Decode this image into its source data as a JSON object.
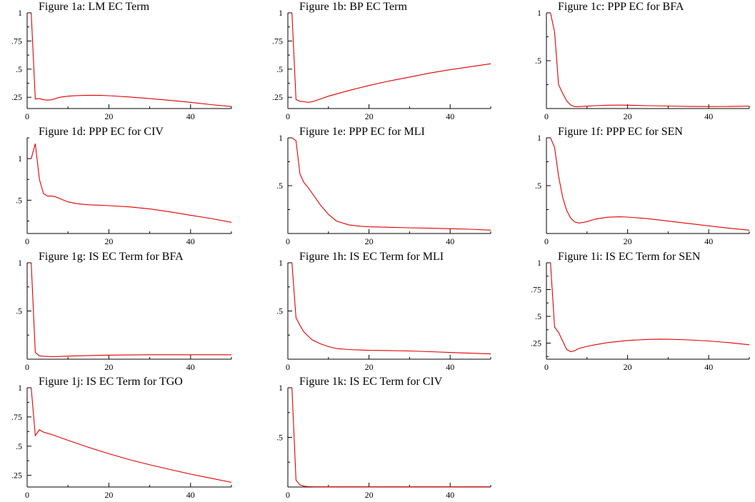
{
  "chart_data": [
    {
      "type": "line",
      "title": "Figure 1a: LM EC Term",
      "xlim": [
        0,
        50
      ],
      "ylim": [
        0.15,
        1.0
      ],
      "x_ticks": [
        0,
        20,
        40
      ],
      "y_ticks": [
        0.25,
        0.5,
        0.75,
        1
      ],
      "y_tick_labels": [
        ".25",
        ".5",
        ".75",
        "1"
      ],
      "series": [
        {
          "x": [
            1,
            2,
            3,
            4,
            5,
            6,
            8,
            10,
            12,
            15,
            18,
            20,
            25,
            30,
            35,
            40,
            45,
            50
          ],
          "values": [
            1.0,
            0.235,
            0.238,
            0.228,
            0.225,
            0.228,
            0.25,
            0.26,
            0.265,
            0.268,
            0.267,
            0.264,
            0.253,
            0.238,
            0.222,
            0.205,
            0.185,
            0.168
          ]
        }
      ]
    },
    {
      "type": "line",
      "title": "Figure 1b: BP EC Term",
      "xlim": [
        0,
        50
      ],
      "ylim": [
        0.15,
        1.0
      ],
      "x_ticks": [
        0,
        20,
        40
      ],
      "y_ticks": [
        0.25,
        0.5,
        0.75,
        1
      ],
      "y_tick_labels": [
        ".25",
        ".5",
        ".75",
        "1"
      ],
      "series": [
        {
          "x": [
            1,
            2,
            3,
            4,
            5,
            6,
            8,
            10,
            15,
            20,
            25,
            30,
            35,
            40,
            45,
            50
          ],
          "values": [
            1.0,
            0.23,
            0.215,
            0.21,
            0.205,
            0.21,
            0.235,
            0.26,
            0.31,
            0.355,
            0.395,
            0.43,
            0.465,
            0.495,
            0.522,
            0.548
          ]
        }
      ]
    },
    {
      "type": "line",
      "title": "Figure 1c: PPP EC for BFA",
      "xlim": [
        0,
        50
      ],
      "ylim": [
        0.0,
        1.0
      ],
      "x_ticks": [
        0,
        20,
        40
      ],
      "y_ticks": [
        0.5,
        1
      ],
      "y_tick_labels": [
        ".5",
        "1"
      ],
      "series": [
        {
          "x": [
            1,
            2,
            3,
            4,
            5,
            6,
            7,
            8,
            10,
            12,
            15,
            18,
            20,
            25,
            30,
            35,
            40,
            45,
            50
          ],
          "values": [
            1.0,
            0.8,
            0.25,
            0.16,
            0.08,
            0.035,
            0.02,
            0.02,
            0.025,
            0.03,
            0.035,
            0.036,
            0.035,
            0.03,
            0.026,
            0.022,
            0.021,
            0.022,
            0.025
          ]
        }
      ]
    },
    {
      "type": "line",
      "title": "Figure 1d: PPP EC for CIV",
      "xlim": [
        0,
        50
      ],
      "ylim": [
        0.1,
        1.25
      ],
      "x_ticks": [
        0,
        20,
        40
      ],
      "y_ticks": [
        0.5,
        1
      ],
      "y_tick_labels": [
        ".5",
        "1"
      ],
      "series": [
        {
          "x": [
            1,
            2,
            3,
            4,
            5,
            6,
            7,
            8,
            10,
            12,
            15,
            18,
            20,
            25,
            30,
            35,
            40,
            45,
            50
          ],
          "values": [
            1.0,
            1.18,
            0.75,
            0.58,
            0.55,
            0.55,
            0.54,
            0.52,
            0.48,
            0.46,
            0.445,
            0.44,
            0.435,
            0.42,
            0.395,
            0.36,
            0.32,
            0.28,
            0.235
          ]
        }
      ]
    },
    {
      "type": "line",
      "title": "Figure 1e: PPP EC for MLI",
      "xlim": [
        0,
        50
      ],
      "ylim": [
        0.0,
        1.0
      ],
      "x_ticks": [
        0,
        20,
        40
      ],
      "y_ticks": [
        0.5,
        1
      ],
      "y_tick_labels": [
        ".5",
        "1"
      ],
      "series": [
        {
          "x": [
            1,
            2,
            3,
            4,
            5,
            6,
            8,
            10,
            12,
            15,
            18,
            20,
            25,
            30,
            35,
            40,
            45,
            50
          ],
          "values": [
            1.0,
            0.97,
            0.62,
            0.53,
            0.48,
            0.42,
            0.3,
            0.2,
            0.13,
            0.09,
            0.075,
            0.07,
            0.065,
            0.06,
            0.055,
            0.05,
            0.045,
            0.035
          ]
        }
      ]
    },
    {
      "type": "line",
      "title": "Figure 1f: PPP EC for SEN",
      "xlim": [
        0,
        50
      ],
      "ylim": [
        0.0,
        1.0
      ],
      "x_ticks": [
        0,
        20,
        40
      ],
      "y_ticks": [
        0.5,
        1
      ],
      "y_tick_labels": [
        ".5",
        "1"
      ],
      "series": [
        {
          "x": [
            1,
            2,
            3,
            4,
            5,
            6,
            7,
            8,
            9,
            10,
            12,
            15,
            18,
            20,
            25,
            30,
            35,
            40,
            45,
            50
          ],
          "values": [
            1.0,
            0.9,
            0.6,
            0.38,
            0.24,
            0.16,
            0.12,
            0.11,
            0.115,
            0.125,
            0.15,
            0.17,
            0.175,
            0.172,
            0.155,
            0.13,
            0.105,
            0.08,
            0.055,
            0.035
          ]
        }
      ]
    },
    {
      "type": "line",
      "title": "Figure 1g: IS EC Term for BFA",
      "xlim": [
        0,
        50
      ],
      "ylim": [
        0.0,
        1.0
      ],
      "x_ticks": [
        0,
        20,
        40
      ],
      "y_ticks": [
        0.5,
        1
      ],
      "y_tick_labels": [
        ".5",
        "1"
      ],
      "series": [
        {
          "x": [
            1,
            2,
            3,
            4,
            5,
            6,
            8,
            10,
            15,
            20,
            25,
            30,
            35,
            40,
            45,
            50
          ],
          "values": [
            1.0,
            0.07,
            0.035,
            0.03,
            0.028,
            0.026,
            0.028,
            0.032,
            0.038,
            0.042,
            0.044,
            0.046,
            0.046,
            0.046,
            0.046,
            0.046
          ]
        }
      ]
    },
    {
      "type": "line",
      "title": "Figure 1h: IS EC Term for MLI",
      "xlim": [
        0,
        50
      ],
      "ylim": [
        0.0,
        1.0
      ],
      "x_ticks": [
        0,
        20,
        40
      ],
      "y_ticks": [
        0.5,
        1
      ],
      "y_tick_labels": [
        ".5",
        "1"
      ],
      "series": [
        {
          "x": [
            1,
            2,
            3,
            4,
            5,
            6,
            8,
            10,
            12,
            15,
            18,
            20,
            25,
            30,
            35,
            40,
            45,
            50
          ],
          "values": [
            1.0,
            0.43,
            0.35,
            0.28,
            0.24,
            0.2,
            0.16,
            0.13,
            0.11,
            0.1,
            0.095,
            0.092,
            0.09,
            0.085,
            0.078,
            0.07,
            0.062,
            0.055
          ]
        }
      ]
    },
    {
      "type": "line",
      "title": "Figure 1i: IS EC Term for SEN",
      "xlim": [
        0,
        50
      ],
      "ylim": [
        0.1,
        1.0
      ],
      "x_ticks": [
        0,
        20,
        40
      ],
      "y_ticks": [
        0.25,
        0.5,
        0.75,
        1
      ],
      "y_tick_labels": [
        ".25",
        ".5",
        ".75",
        "1"
      ],
      "series": [
        {
          "x": [
            1,
            2,
            3,
            4,
            5,
            6,
            7,
            8,
            10,
            12,
            15,
            20,
            25,
            28,
            30,
            35,
            40,
            45,
            50
          ],
          "values": [
            1.0,
            0.4,
            0.35,
            0.27,
            0.19,
            0.17,
            0.18,
            0.2,
            0.22,
            0.235,
            0.255,
            0.275,
            0.285,
            0.287,
            0.286,
            0.28,
            0.27,
            0.255,
            0.235
          ]
        }
      ]
    },
    {
      "type": "line",
      "title": "Figure 1j: IS EC Term for TGO",
      "xlim": [
        0,
        50
      ],
      "ylim": [
        0.15,
        1.0
      ],
      "x_ticks": [
        0,
        20,
        40
      ],
      "y_ticks": [
        0.25,
        0.5,
        0.75,
        1
      ],
      "y_tick_labels": [
        ".25",
        ".5",
        ".75",
        "1"
      ],
      "series": [
        {
          "x": [
            1,
            2,
            3,
            4,
            5,
            6,
            8,
            10,
            15,
            20,
            25,
            30,
            35,
            40,
            45,
            50
          ],
          "values": [
            1.0,
            0.59,
            0.64,
            0.62,
            0.61,
            0.6,
            0.575,
            0.55,
            0.49,
            0.435,
            0.385,
            0.34,
            0.3,
            0.26,
            0.225,
            0.19
          ]
        }
      ]
    },
    {
      "type": "line",
      "title": "Figure 1k: IS EC Term for CIV",
      "xlim": [
        0,
        50
      ],
      "ylim": [
        0.0,
        1.0
      ],
      "x_ticks": [
        0,
        20,
        40
      ],
      "y_ticks": [
        0.5,
        1
      ],
      "y_tick_labels": [
        ".5",
        "1"
      ],
      "series": [
        {
          "x": [
            1,
            2,
            3,
            4,
            5,
            6,
            8,
            10,
            20,
            30,
            40,
            50
          ],
          "values": [
            1.0,
            0.07,
            0.02,
            0.008,
            0.004,
            0.003,
            0.002,
            0.002,
            0.002,
            0.002,
            0.002,
            0.002
          ]
        }
      ]
    }
  ]
}
